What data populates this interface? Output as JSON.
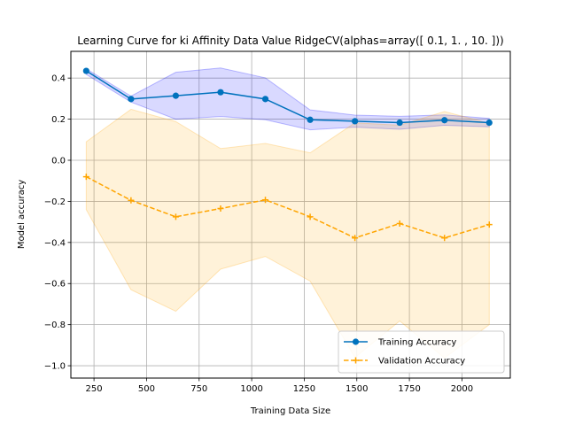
{
  "chart_data": {
    "type": "line",
    "title": "Learning Curve for ki Affinity Data Value RidgeCV(alphas=array([ 0.1,  1. , 10. ]))",
    "xlabel": "Training Data Size",
    "ylabel": "Model accuracy",
    "xlim": [
      140,
      2230
    ],
    "ylim": [
      -1.06,
      0.53
    ],
    "xticks": [
      250,
      500,
      750,
      1000,
      1250,
      1500,
      1750,
      2000
    ],
    "yticks": [
      -1.0,
      -0.8,
      -0.6,
      -0.4,
      -0.2,
      0.0,
      0.2,
      0.4
    ],
    "ytick_labels": [
      "−1.0",
      "−0.8",
      "−0.6",
      "−0.4",
      "−0.2",
      "0.0",
      "0.2",
      "0.4"
    ],
    "grid": true,
    "legend_position": "lower-right",
    "x": [
      213,
      426,
      639,
      852,
      1065,
      1278,
      1491,
      1704,
      1917,
      2130
    ],
    "series": [
      {
        "name": "Training Accuracy",
        "color": "#0072bd",
        "band_color": "#0000ff",
        "marker": "circle",
        "linestyle": "solid",
        "values": [
          0.435,
          0.298,
          0.314,
          0.331,
          0.298,
          0.197,
          0.19,
          0.183,
          0.195,
          0.183
        ],
        "upper": [
          0.445,
          0.312,
          0.428,
          0.449,
          0.401,
          0.245,
          0.22,
          0.214,
          0.221,
          0.204
        ],
        "lower": [
          0.418,
          0.283,
          0.2,
          0.213,
          0.197,
          0.148,
          0.161,
          0.151,
          0.17,
          0.163
        ]
      },
      {
        "name": "Validation Accuracy",
        "color": "#ffa500",
        "band_color": "#ffa500",
        "marker": "plus",
        "linestyle": "dashed",
        "values": [
          -0.08,
          -0.195,
          -0.275,
          -0.235,
          -0.193,
          -0.275,
          -0.378,
          -0.308,
          -0.378,
          -0.313
        ],
        "upper": [
          0.09,
          0.248,
          0.188,
          0.057,
          0.082,
          0.036,
          0.182,
          0.171,
          0.237,
          0.18
        ],
        "lower": [
          -0.24,
          -0.63,
          -0.735,
          -0.53,
          -0.468,
          -0.588,
          -0.96,
          -0.782,
          -0.962,
          -0.8
        ]
      }
    ]
  }
}
